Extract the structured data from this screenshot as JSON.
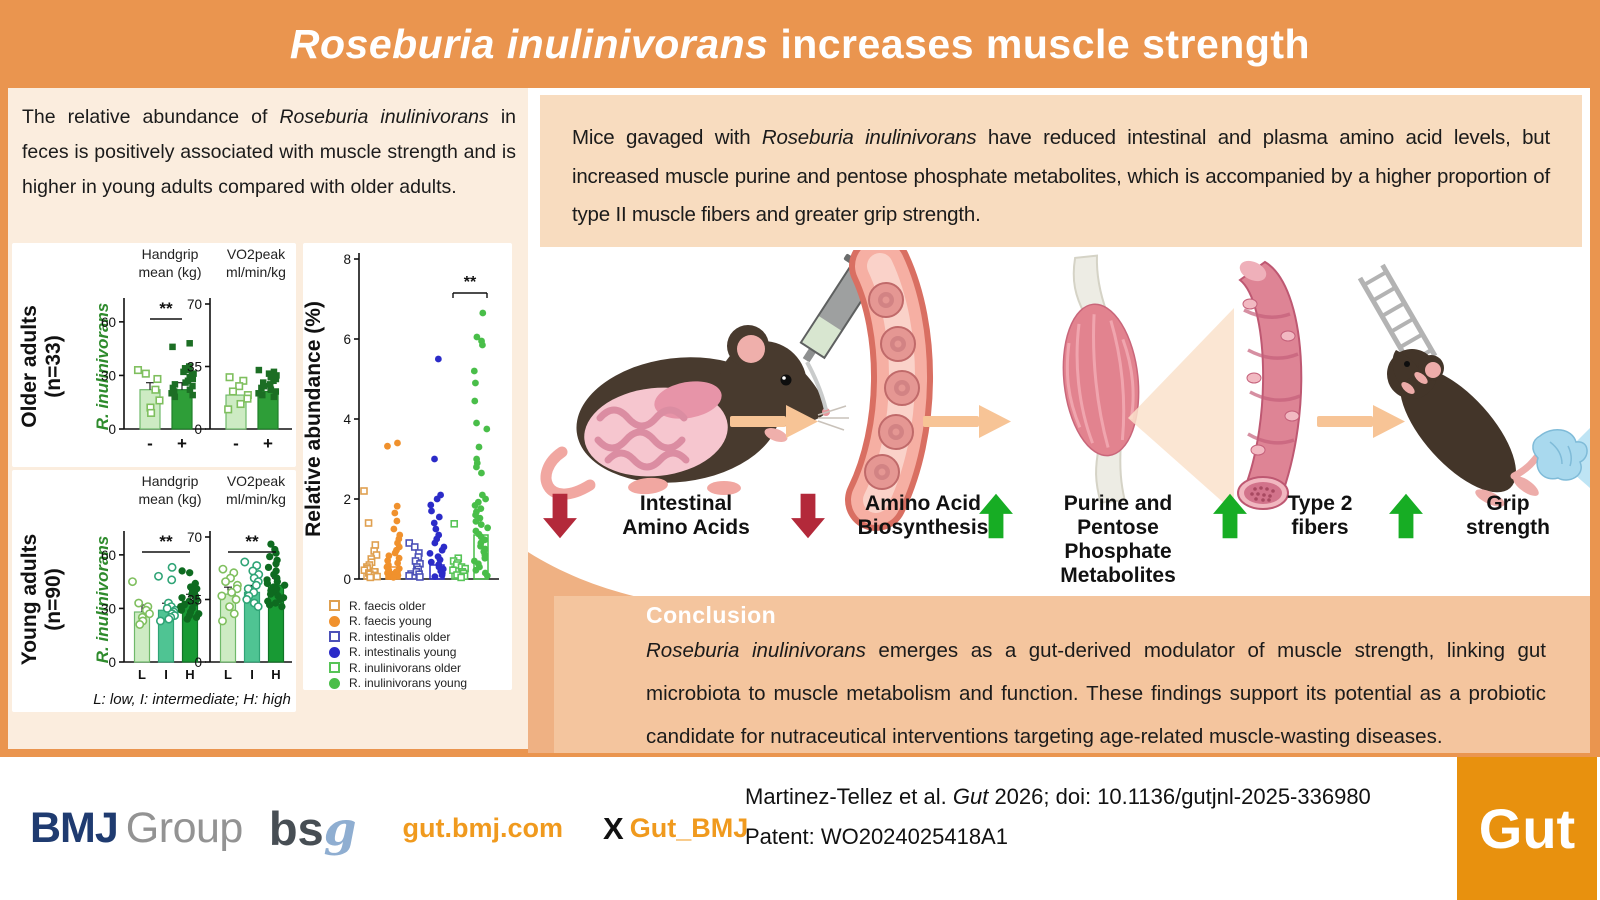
{
  "banner": {
    "title_parts": [
      {
        "t": "Roseburia inulinivorans",
        "i": true
      },
      {
        "t": " increases muscle strength"
      }
    ]
  },
  "left_panel": {
    "intro_parts": [
      {
        "t": "The relative abundance of "
      },
      {
        "t": "Roseburia inulinivorans",
        "i": true
      },
      {
        "t": " in feces is positively associated with muscle strength and is higher in young adults compared with older adults."
      }
    ]
  },
  "right_panel": {
    "summary_parts": [
      {
        "t": "Mice gavaged with "
      },
      {
        "t": "Roseburia inulinivorans",
        "i": true
      },
      {
        "t": " have reduced intestinal and plasma amino acid levels, but increased muscle purine and pentose phosphate metabolites, which is accompanied by a higher proportion of type II muscle fibers and greater grip strength."
      }
    ],
    "flow_items": [
      {
        "direction": "down",
        "color": "#B3293A",
        "lines": [
          "Intestinal",
          "Amino Acids"
        ]
      },
      {
        "direction": "down",
        "color": "#B3293A",
        "lines": [
          "Amino Acid",
          "Biosynthesis"
        ]
      },
      {
        "direction": "up",
        "color": "#17AD24",
        "lines": [
          "Purine and",
          "Pentose",
          "Phosphate",
          "Metabolites"
        ]
      },
      {
        "direction": "up",
        "color": "#17AD24",
        "lines": [
          "Type 2",
          "fibers"
        ]
      },
      {
        "direction": "up",
        "color": "#17AD24",
        "lines": [
          "Grip",
          "strength"
        ]
      }
    ]
  },
  "conclusion": {
    "heading": "Conclusion",
    "body_parts": [
      {
        "t": "Roseburia inulinivorans",
        "i": true
      },
      {
        "t": " emerges as a gut-derived modulator of muscle strength, linking gut microbiota to muscle metabolism and function. These findings support its potential as a probiotic candidate for nutraceutical interventions targeting age-related muscle-wasting diseases."
      }
    ]
  },
  "footer": {
    "bmj": "BMJ",
    "group": "Group",
    "bsg_bs": "bs",
    "bsg_g": "g",
    "site": "gut.bmj.com",
    "x_glyph": "X",
    "handle": "Gut_BMJ",
    "citation_parts": [
      {
        "t": "Martinez-Tellez et al. "
      },
      {
        "t": "Gut",
        "i": true
      },
      {
        "t": " 2026; doi: 10.1136/gutjnl-2025-336980"
      }
    ],
    "patent": "Patent: WO2024025418A1",
    "gut_logo": "Gut"
  },
  "chart_data": [
    {
      "id": "older_adults",
      "type": "bar",
      "group_title": "Older adults",
      "group_subtitle": "(n=33)",
      "species_label": "R. inulinivorans",
      "species_color": "#2E8B2C",
      "panels": [
        {
          "title": [
            "Handgrip",
            "mean (kg)"
          ],
          "ylim": [
            0,
            70
          ],
          "yticks": [
            0,
            30,
            60
          ],
          "sig": "**",
          "categories": [
            "-",
            "+"
          ],
          "bars": [
            {
              "label": "-",
              "value": 22,
              "fill": "#CDEBC3",
              "stroke": "#6FB96A",
              "marker": "square-open",
              "marker_color": "#7FBF5E",
              "points": [
                33,
                31,
                28,
                22,
                16,
                12,
                9
              ]
            },
            {
              "label": "+",
              "value": 22,
              "fill": "#2E9E38",
              "stroke": "#20802A",
              "marker": "square-fill",
              "marker_color": "#1C6E24",
              "points": [
                48,
                46,
                35,
                34,
                33,
                32,
                31,
                30,
                29,
                28,
                27,
                26,
                25,
                24,
                23,
                22,
                21,
                20,
                19,
                18
              ]
            }
          ]
        },
        {
          "title": [
            "VO2peak",
            "ml/min/kg"
          ],
          "ylim": [
            0,
            70
          ],
          "yticks": [
            0,
            35,
            70
          ],
          "sig": null,
          "categories": [
            "-",
            "+"
          ],
          "bars": [
            {
              "label": "-",
              "value": 19,
              "fill": "#CDEBC3",
              "stroke": "#6FB96A",
              "marker": "square-open",
              "marker_color": "#7FBF5E",
              "points": [
                29,
                27,
                24,
                21,
                19,
                17,
                14,
                11
              ]
            },
            {
              "label": "+",
              "value": 21,
              "fill": "#2E9E38",
              "stroke": "#20802A",
              "marker": "square-fill",
              "marker_color": "#1C6E24",
              "points": [
                33,
                32,
                31,
                30,
                29,
                28,
                27,
                26,
                25,
                24,
                23,
                22,
                21,
                20,
                19,
                18
              ]
            }
          ]
        }
      ],
      "footnote": null
    },
    {
      "id": "young_adults",
      "type": "bar",
      "group_title": "Young adults",
      "group_subtitle": "(n=90)",
      "species_label": "R. inulinivorans",
      "species_color": "#2E8B2C",
      "panels": [
        {
          "title": [
            "Handgrip",
            "mean (kg)"
          ],
          "ylim": [
            0,
            70
          ],
          "yticks": [
            0,
            30,
            60
          ],
          "sig": "**",
          "categories": [
            "L",
            "I",
            "H"
          ],
          "bars": [
            {
              "label": "L",
              "value": 28,
              "fill": "#CDEBC3",
              "stroke": "#6FB96A",
              "marker": "circle-open",
              "marker_color": "#7FBF5E",
              "points": [
                45,
                33,
                31,
                29,
                27,
                25,
                23,
                21
              ]
            },
            {
              "label": "I",
              "value": 29,
              "fill": "#4FC493",
              "stroke": "#2FA476",
              "marker": "circle-open",
              "marker_color": "#2FA476",
              "points": [
                53,
                48,
                46,
                33,
                31,
                30,
                29,
                28,
                27,
                26,
                25,
                24,
                23
              ]
            },
            {
              "label": "H",
              "value": 34,
              "fill": "#189A34",
              "stroke": "#107426",
              "marker": "circle-fill",
              "marker_color": "#0E6B20",
              "points": [
                51,
                50,
                44,
                43,
                42,
                41,
                40,
                39,
                38,
                37,
                36,
                35,
                34,
                33,
                32,
                31,
                30,
                29,
                28,
                27,
                26,
                25,
                24
              ]
            }
          ]
        },
        {
          "title": [
            "VO2peak",
            "ml/min/kg"
          ],
          "ylim": [
            0,
            70
          ],
          "yticks": [
            0,
            35,
            70
          ],
          "sig": "**",
          "categories": [
            "L",
            "I",
            "H"
          ],
          "bars": [
            {
              "label": "L",
              "value": 38,
              "fill": "#CDEBC3",
              "stroke": "#6FB96A",
              "marker": "circle-open",
              "marker_color": "#7FBF5E",
              "points": [
                52,
                50,
                47,
                45,
                43,
                41,
                39,
                37,
                35,
                31,
                27,
                23
              ]
            },
            {
              "label": "I",
              "value": 39,
              "fill": "#4FC493",
              "stroke": "#2FA476",
              "marker": "circle-open",
              "marker_color": "#2FA476",
              "points": [
                56,
                54,
                51,
                49,
                47,
                45,
                43,
                41,
                39,
                37,
                35,
                33,
                31
              ]
            },
            {
              "label": "H",
              "value": 43,
              "fill": "#189A34",
              "stroke": "#107426",
              "marker": "circle-fill",
              "marker_color": "#0E6B20",
              "points": [
                66,
                63,
                61,
                59,
                57,
                55,
                53,
                51,
                49,
                47,
                46,
                45,
                44,
                43,
                42,
                41,
                40,
                39,
                38,
                37,
                36,
                35,
                34,
                33,
                32,
                31
              ]
            }
          ]
        }
      ],
      "footnote": "L: low, I: intermediate; H: high"
    },
    {
      "id": "relative_abundance",
      "type": "scatter-bar",
      "ylabel": "Relative abundance (%)",
      "ylim": [
        0,
        8
      ],
      "yticks": [
        0,
        2,
        4,
        6,
        8
      ],
      "sig": {
        "pair": [
          4,
          5
        ],
        "label": "**"
      },
      "series": [
        {
          "label": "R. faecis older",
          "marker": "square-open",
          "color": "#DFA050",
          "bar": 0.25,
          "points": [
            2.2,
            1.4,
            0.85,
            0.7,
            0.6,
            0.5,
            0.42,
            0.35,
            0.3,
            0.26,
            0.22,
            0.18,
            0.15,
            0.12,
            0.09,
            0.06,
            0.04
          ]
        },
        {
          "label": "R. faecis young",
          "marker": "circle-fill",
          "color": "#F0912D",
          "bar": 0.3,
          "points": [
            3.4,
            3.32,
            1.82,
            1.65,
            1.45,
            1.25,
            1.1,
            1.0,
            0.9,
            0.8,
            0.72,
            0.65,
            0.58,
            0.52,
            0.46,
            0.4,
            0.35,
            0.3,
            0.26,
            0.22,
            0.18,
            0.15,
            0.12,
            0.09,
            0.06,
            0.04
          ]
        },
        {
          "label": "R. intestinalis older",
          "marker": "square-open",
          "color": "#4C51B8",
          "bar": 0.2,
          "points": [
            0.9,
            0.8,
            0.65,
            0.55,
            0.45,
            0.38,
            0.3,
            0.24,
            0.18,
            0.12,
            0.08,
            0.05
          ]
        },
        {
          "label": "R. intestinalis young",
          "marker": "circle-fill",
          "color": "#2B2BC8",
          "bar": 0.35,
          "points": [
            5.5,
            3.0,
            2.1,
            2.0,
            1.85,
            1.7,
            1.55,
            1.4,
            1.25,
            1.1,
            1.0,
            0.9,
            0.8,
            0.72,
            0.64,
            0.56,
            0.48,
            0.42,
            0.36,
            0.3,
            0.25,
            0.2,
            0.15,
            0.1,
            0.06
          ]
        },
        {
          "label": "R. inulinivorans older",
          "marker": "square-open",
          "color": "#57C457",
          "bar": 0.32,
          "points": [
            1.38,
            0.52,
            0.45,
            0.4,
            0.35,
            0.3,
            0.26,
            0.22,
            0.18,
            0.14,
            0.1,
            0.07,
            0.04
          ]
        },
        {
          "label": "R. inulinivorans young",
          "marker": "circle-fill",
          "color": "#49BE49",
          "bar": 1.1,
          "points": [
            6.65,
            6.05,
            5.95,
            5.85,
            5.2,
            4.9,
            4.45,
            3.9,
            3.75,
            3.3,
            3.0,
            2.9,
            2.8,
            2.65,
            2.1,
            2.0,
            1.92,
            1.84,
            1.76,
            1.68,
            1.6,
            1.52,
            1.44,
            1.36,
            1.28,
            1.2,
            1.12,
            1.05,
            0.98,
            0.9,
            0.82,
            0.75,
            0.68,
            0.6,
            0.52,
            0.45,
            0.38,
            0.3,
            0.22,
            0.15,
            0.08
          ]
        }
      ]
    }
  ]
}
